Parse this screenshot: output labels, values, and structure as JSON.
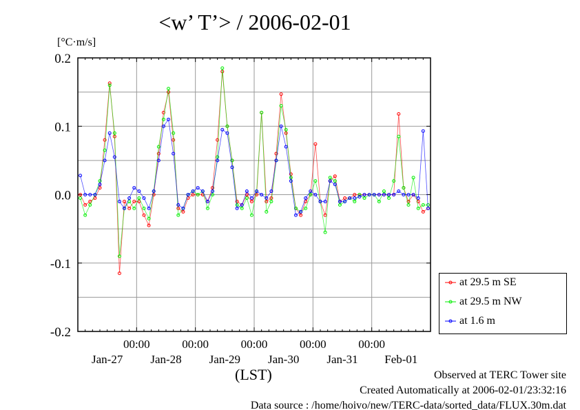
{
  "chart_data": {
    "type": "line",
    "title": "<w’ T’> / 2006-02-01",
    "ylabel": "[°C·m/s]",
    "xlabel": "(LST)",
    "ylim": [
      -0.2,
      0.2
    ],
    "yticks": [
      "0.2",
      "0.1",
      "0.0",
      "-0.1",
      "-0.2"
    ],
    "ytick_values": [
      0.2,
      0.1,
      0.0,
      -0.1,
      -0.2
    ],
    "xlim_hours": [
      0,
      144
    ],
    "x_start": "Jan-27 00:00",
    "x_step_hours": 2,
    "time_tick_label": "00:00",
    "time_ticks_hours": [
      24,
      48,
      72,
      96,
      120
    ],
    "day_labels": [
      "Jan-27",
      "Jan-28",
      "Jan-29",
      "Jan-30",
      "Jan-31",
      "Feb-01"
    ],
    "grid": true,
    "legend_position": "right-bottom-outside",
    "series": [
      {
        "name": "at 29.5 m SE",
        "color": "#ff0000",
        "values": [
          0.0,
          -0.015,
          -0.01,
          -0.005,
          0.01,
          0.08,
          0.163,
          0.085,
          -0.115,
          -0.01,
          -0.02,
          -0.01,
          -0.01,
          -0.03,
          -0.045,
          0.0,
          0.06,
          0.12,
          0.15,
          0.08,
          -0.02,
          -0.025,
          -0.005,
          0.0,
          0.0,
          0.0,
          -0.01,
          0.01,
          0.08,
          0.18,
          0.1,
          0.05,
          -0.01,
          -0.015,
          0.0,
          -0.01,
          0.0,
          0.12,
          -0.01,
          -0.005,
          0.06,
          0.147,
          0.09,
          0.03,
          -0.02,
          -0.03,
          -0.01,
          0.0,
          0.074,
          -0.01,
          -0.03,
          0.02,
          0.027,
          -0.01,
          -0.005,
          -0.005,
          0.0,
          0.0,
          0.0,
          0.0,
          0.0,
          0.0,
          0.0,
          0.0,
          0.0,
          0.118,
          0.01,
          -0.01,
          0.0,
          -0.01,
          -0.025,
          -0.02
        ]
      },
      {
        "name": "at 29.5 m NW",
        "color": "#00ee00",
        "values": [
          -0.005,
          -0.03,
          -0.015,
          0.0,
          0.02,
          0.065,
          0.16,
          0.09,
          -0.09,
          -0.02,
          -0.01,
          -0.02,
          -0.005,
          -0.02,
          -0.035,
          0.005,
          0.07,
          0.11,
          0.155,
          0.09,
          -0.03,
          -0.02,
          0.0,
          0.005,
          0.0,
          0.005,
          -0.02,
          0.0,
          0.055,
          0.185,
          0.1,
          0.05,
          -0.015,
          -0.02,
          -0.005,
          -0.03,
          0.005,
          0.12,
          -0.025,
          -0.01,
          0.05,
          0.13,
          0.095,
          0.025,
          -0.02,
          -0.025,
          -0.02,
          0.0,
          0.02,
          -0.01,
          -0.055,
          0.025,
          0.02,
          -0.015,
          -0.01,
          -0.005,
          -0.01,
          0.0,
          -0.005,
          0.0,
          0.0,
          -0.01,
          0.005,
          -0.005,
          0.02,
          0.085,
          0.01,
          -0.015,
          0.025,
          -0.02,
          -0.015,
          -0.015
        ]
      },
      {
        "name": "at 1.6 m",
        "color": "#0000ff",
        "values": [
          0.028,
          0.0,
          0.0,
          0.0,
          0.015,
          0.05,
          0.09,
          0.055,
          -0.01,
          -0.02,
          -0.005,
          0.01,
          0.005,
          -0.005,
          -0.02,
          0.005,
          0.05,
          0.1,
          0.11,
          0.06,
          -0.015,
          -0.02,
          0.0,
          0.005,
          0.01,
          0.005,
          -0.01,
          0.005,
          0.05,
          0.095,
          0.09,
          0.04,
          -0.02,
          -0.015,
          0.005,
          -0.005,
          0.005,
          0.0,
          -0.005,
          0.005,
          0.05,
          0.1,
          0.07,
          0.02,
          -0.03,
          -0.025,
          -0.005,
          0.005,
          0.0,
          -0.01,
          -0.01,
          0.02,
          0.015,
          -0.01,
          -0.01,
          -0.005,
          -0.005,
          -0.003,
          0.0,
          0.0,
          0.0,
          0.0,
          0.0,
          0.0,
          0.0,
          0.005,
          0.0,
          0.0,
          0.0,
          -0.005,
          0.093,
          -0.02
        ]
      }
    ]
  },
  "footer": {
    "observed": "Observed at TERC Tower site",
    "created": "Created Automatically at 2006-02-01/23:32:16",
    "source": "Data source : /home/hoivo/new/TERC-data/sorted_data/FLUX.30m.dat"
  }
}
